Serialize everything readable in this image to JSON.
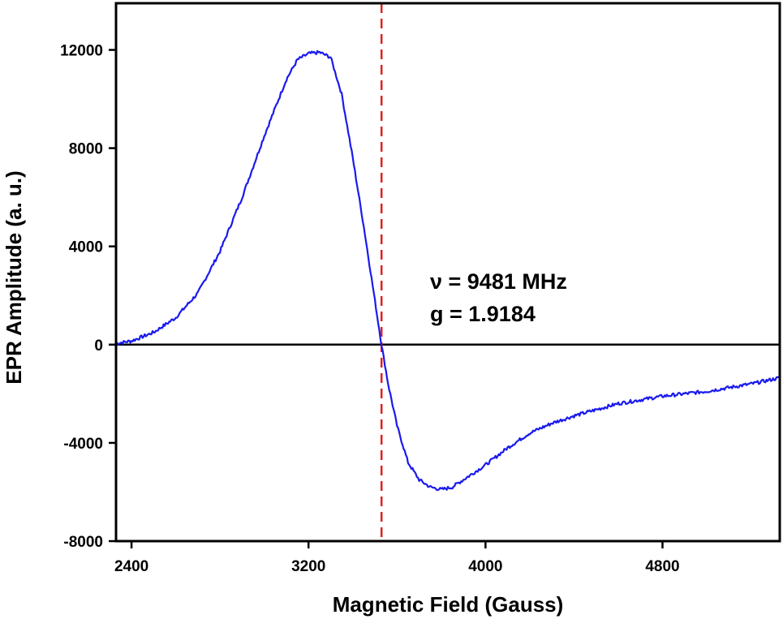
{
  "chart_data": {
    "type": "line",
    "title": "",
    "xlabel": "Magnetic Field (Gauss)",
    "ylabel": "EPR Amplitude (a. u.)",
    "xlim": [
      2330,
      5330
    ],
    "ylim": [
      -8000,
      13900
    ],
    "x_ticks": [
      2400,
      3200,
      4000,
      4800
    ],
    "y_ticks": [
      -8000,
      -4000,
      0,
      4000,
      8000,
      12000
    ],
    "x_tick_labels": [
      "2400",
      "3200",
      "4000",
      "4800"
    ],
    "y_tick_labels": [
      "-8000",
      "-4000",
      "0",
      "4000",
      "8000",
      "12000"
    ],
    "grid": false,
    "legend": "none",
    "zero_line": true,
    "series": [
      {
        "color": "#1a1aee",
        "x": [
          2330,
          2400,
          2500,
          2600,
          2700,
          2800,
          2900,
          3000,
          3100,
          3150,
          3200,
          3250,
          3300,
          3350,
          3400,
          3450,
          3500,
          3530,
          3560,
          3600,
          3650,
          3700,
          3750,
          3800,
          3850,
          3900,
          4000,
          4100,
          4200,
          4300,
          4400,
          4600,
          4800,
          5000,
          5200,
          5330
        ],
        "y": [
          50,
          150,
          500,
          1100,
          2100,
          3800,
          6000,
          8500,
          10800,
          11600,
          11850,
          11900,
          11700,
          10200,
          7600,
          4800,
          1800,
          0,
          -1600,
          -3300,
          -4800,
          -5500,
          -5800,
          -5900,
          -5800,
          -5500,
          -4900,
          -4200,
          -3600,
          -3200,
          -2900,
          -2400,
          -2100,
          -1900,
          -1600,
          -1350
        ]
      }
    ],
    "reference_line": {
      "x": 3530,
      "color": "#dd2222",
      "style": "dashed"
    },
    "annotations": [
      "ν = 9481 MHz",
      "g = 1.9184"
    ]
  }
}
